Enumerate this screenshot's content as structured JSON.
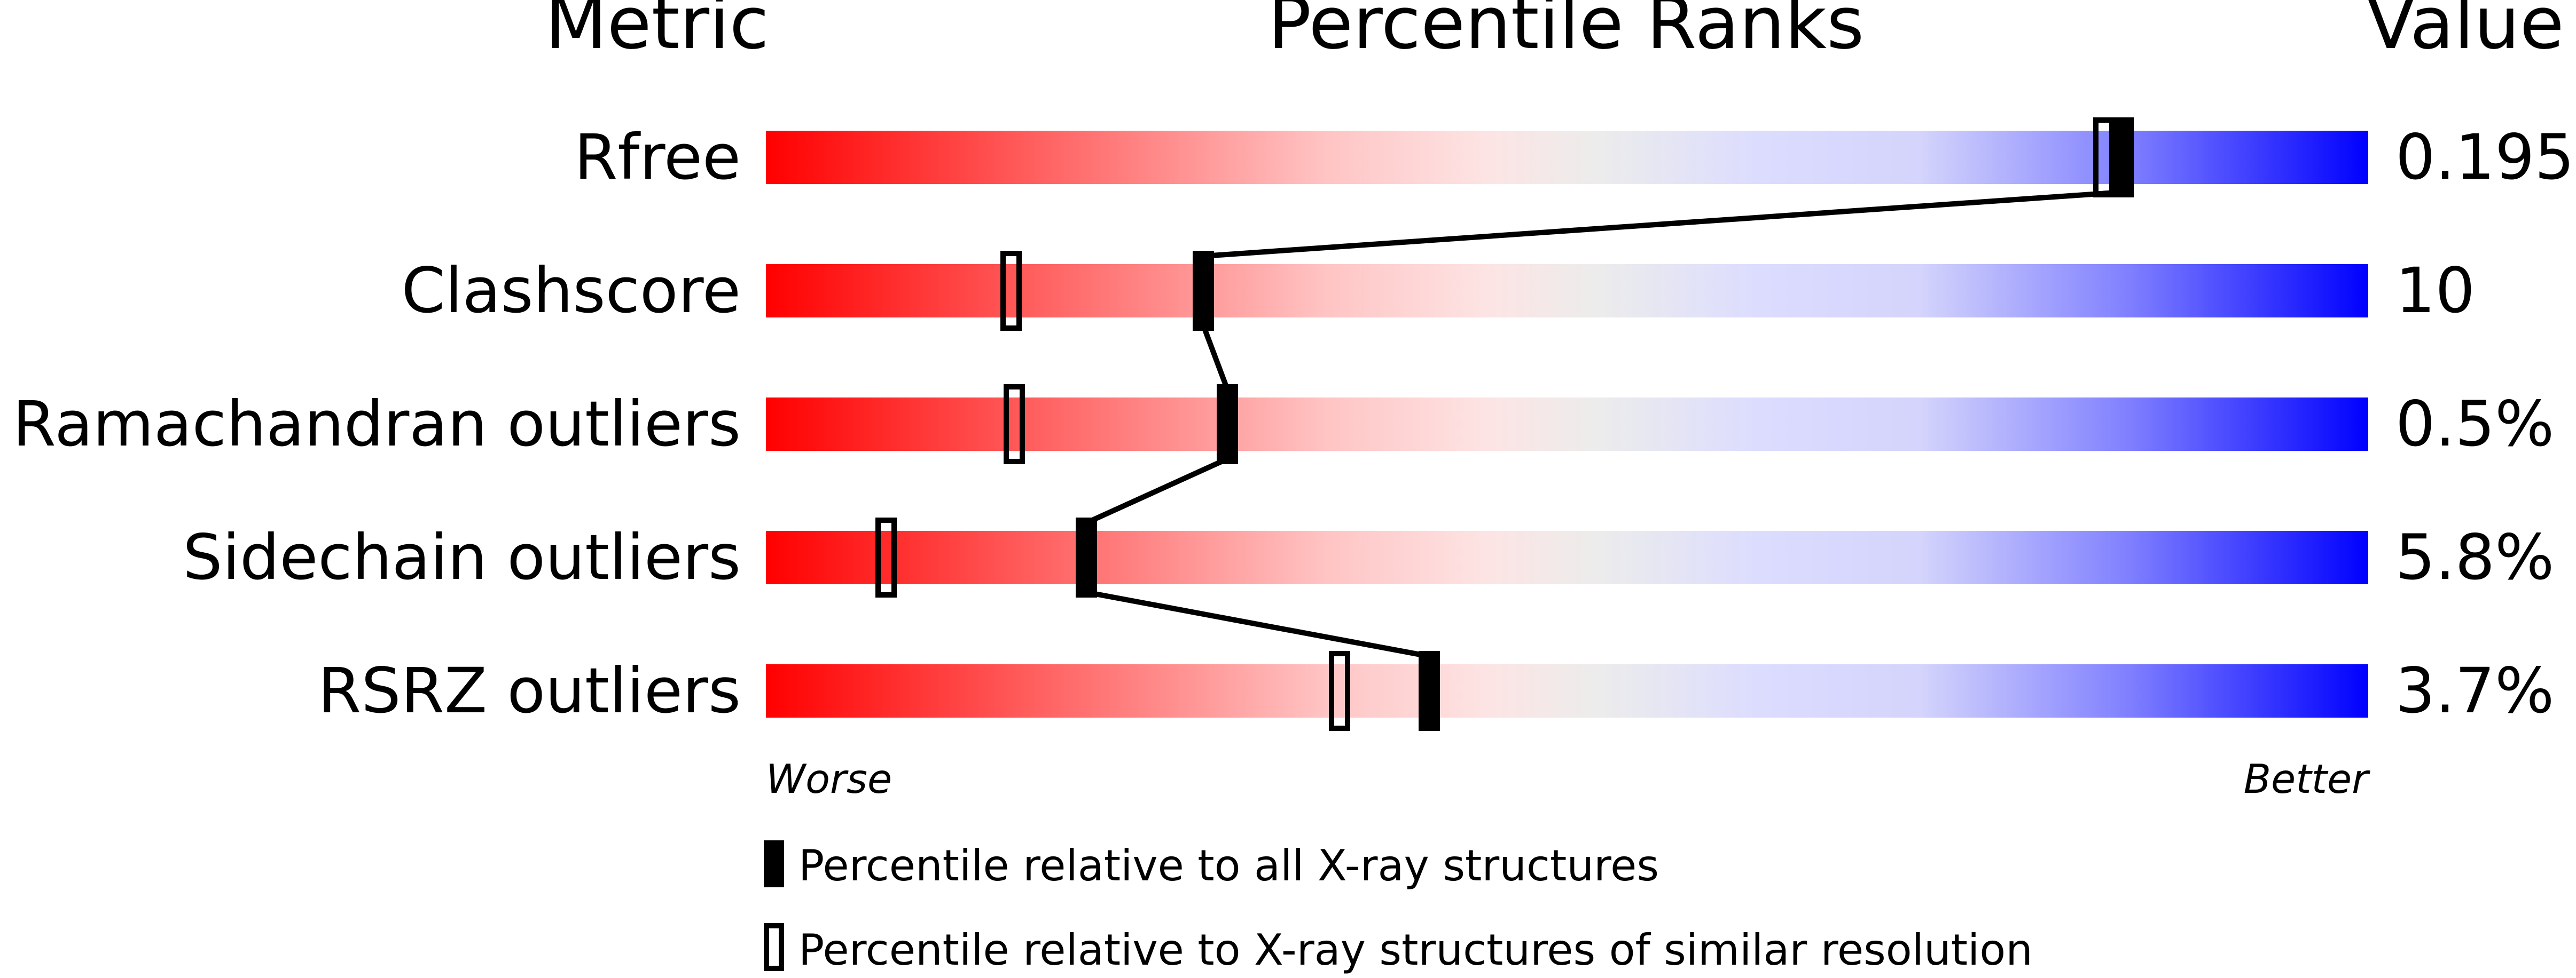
{
  "chart_data": {
    "type": "percentile-strip",
    "headers": {
      "metric": "Metric",
      "ranks": "Percentile Ranks",
      "value": "Value"
    },
    "xlim": [
      0,
      100
    ],
    "axis_labels": {
      "left": "Worse",
      "right": "Better"
    },
    "gradient_colors": {
      "worse": "#ff0000",
      "middle": "#eeeeee",
      "better": "#0000ff"
    },
    "rows": [
      {
        "metric": "Rfree",
        "value": "0.195",
        "percentile_all": 84.7,
        "percentile_similar": 83.5
      },
      {
        "metric": "Clashscore",
        "value": "10",
        "percentile_all": 27.3,
        "percentile_similar": 15.3
      },
      {
        "metric": "Ramachandran outliers",
        "value": "0.5%",
        "percentile_all": 28.8,
        "percentile_similar": 15.5
      },
      {
        "metric": "Sidechain outliers",
        "value": "5.8%",
        "percentile_all": 20.0,
        "percentile_similar": 7.5
      },
      {
        "metric": "RSRZ outliers",
        "value": "3.7%",
        "percentile_all": 41.4,
        "percentile_similar": 35.8
      }
    ],
    "legend": [
      {
        "marker": "filled",
        "label": "Percentile relative to all X-ray structures"
      },
      {
        "marker": "open",
        "label": "Percentile relative to X-ray structures of similar resolution"
      }
    ]
  }
}
